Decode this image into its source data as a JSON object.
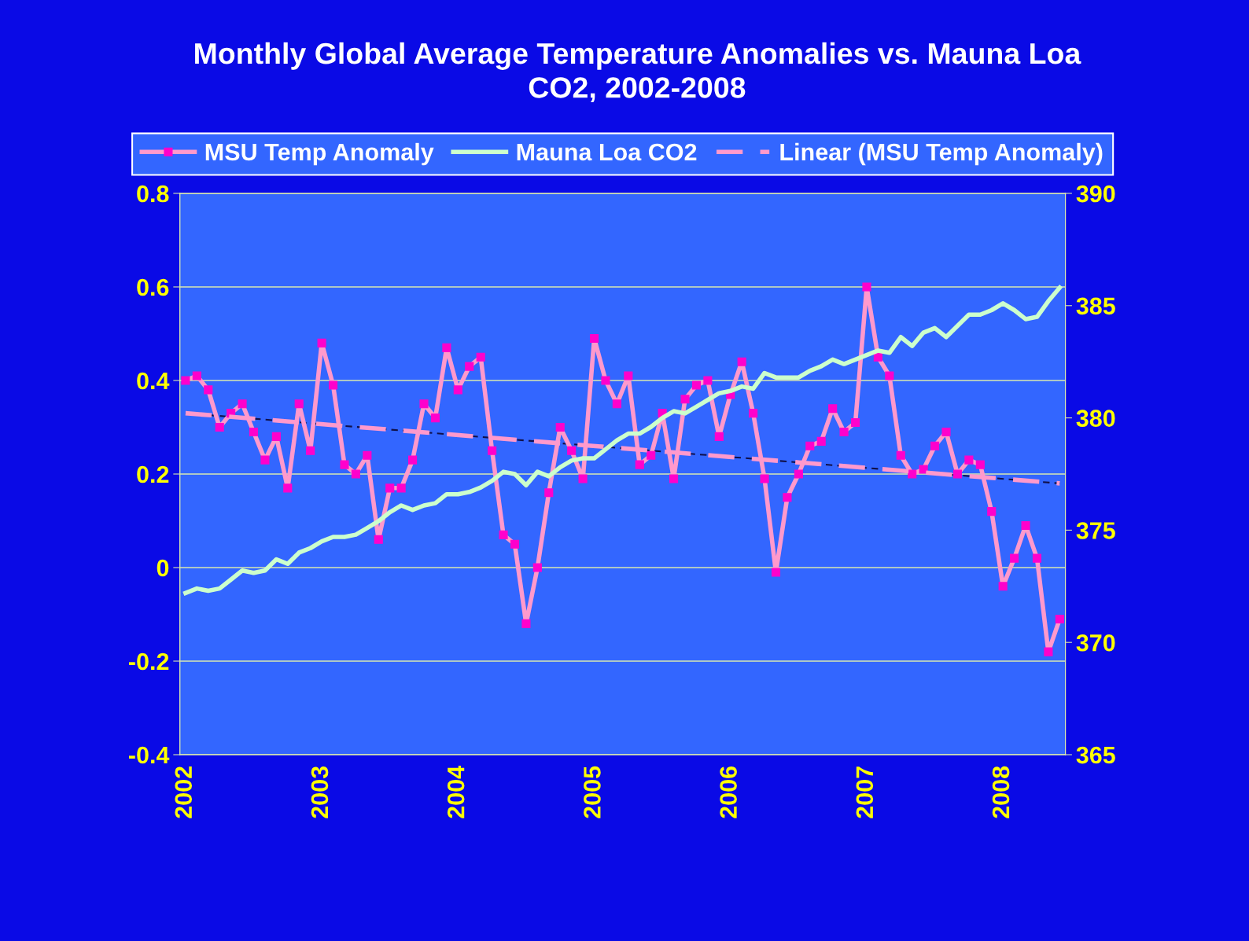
{
  "chart_data": {
    "type": "line",
    "title": "Monthly Global Average Temperature Anomalies vs. Mauna Loa\nCO2, 2002-2008",
    "categories": [
      "2002",
      null,
      null,
      null,
      null,
      null,
      null,
      null,
      null,
      null,
      null,
      null,
      "2003",
      null,
      null,
      null,
      null,
      null,
      null,
      null,
      null,
      null,
      null,
      null,
      "2004",
      null,
      null,
      null,
      null,
      null,
      null,
      null,
      null,
      null,
      null,
      null,
      "2005",
      null,
      null,
      null,
      null,
      null,
      null,
      null,
      null,
      null,
      null,
      null,
      "2006",
      null,
      null,
      null,
      null,
      null,
      null,
      null,
      null,
      null,
      null,
      null,
      "2007",
      null,
      null,
      null,
      null,
      null,
      null,
      null,
      null,
      null,
      null,
      null,
      "2008",
      null,
      null,
      null,
      null,
      null
    ],
    "series": [
      {
        "name": "MSU Temp Anomaly",
        "color": "#ff99cc",
        "marker": "square",
        "line_style": "solid",
        "values": [
          0.4,
          0.41,
          0.38,
          0.3,
          0.33,
          0.35,
          0.29,
          0.23,
          0.28,
          0.17,
          0.35,
          0.25,
          0.48,
          0.39,
          0.22,
          0.2,
          0.24,
          0.06,
          0.17,
          0.17,
          0.23,
          0.35,
          0.32,
          0.47,
          0.38,
          0.43,
          0.45,
          0.25,
          0.07,
          0.05,
          -0.12,
          0.0,
          0.16,
          0.3,
          0.25,
          0.19,
          0.49,
          0.4,
          0.35,
          0.41,
          0.22,
          0.24,
          0.33,
          0.19,
          0.36,
          0.39,
          0.4,
          0.28,
          0.37,
          0.44,
          0.33,
          0.19,
          -0.01,
          0.15,
          0.2,
          0.26,
          0.27,
          0.34,
          0.29,
          0.31,
          0.6,
          0.45,
          0.41,
          0.24,
          0.2,
          0.21,
          0.26,
          0.29,
          0.2,
          0.23,
          0.22,
          0.12,
          -0.04,
          0.02,
          0.09,
          0.02,
          -0.18,
          -0.11
        ]
      },
      {
        "name": "Mauna Loa CO2",
        "color": "#ccffcc",
        "marker": "none",
        "line_style": "solid",
        "axis": "y2",
        "values": [
          372.2,
          372.4,
          372.3,
          372.4,
          372.8,
          373.2,
          373.1,
          373.2,
          373.7,
          373.5,
          374.0,
          374.2,
          374.5,
          374.7,
          374.7,
          374.8,
          375.1,
          375.4,
          375.8,
          376.1,
          375.9,
          376.1,
          376.2,
          376.6,
          376.6,
          376.7,
          376.9,
          377.2,
          377.6,
          377.5,
          377.0,
          377.6,
          377.4,
          377.8,
          378.1,
          378.2,
          378.2,
          378.6,
          379.0,
          379.3,
          379.3,
          379.6,
          380.0,
          380.3,
          380.2,
          380.5,
          380.8,
          381.1,
          381.2,
          381.4,
          381.3,
          382.0,
          381.8,
          381.8,
          381.8,
          382.1,
          382.3,
          382.6,
          382.4,
          382.6,
          382.8,
          383.0,
          382.9,
          383.6,
          383.2,
          383.8,
          384.0,
          383.6,
          384.1,
          384.6,
          384.6,
          384.8,
          385.1,
          384.8,
          384.4,
          384.5,
          385.2,
          385.8
        ]
      },
      {
        "name": "Linear (MSU Temp Anomaly)",
        "color": "#ff99cc",
        "marker": "none",
        "line_style": "dashed",
        "values": [
          0.33,
          null,
          null,
          null,
          null,
          null,
          null,
          null,
          null,
          null,
          null,
          null,
          null,
          null,
          null,
          null,
          null,
          null,
          null,
          null,
          null,
          null,
          null,
          null,
          null,
          null,
          null,
          null,
          null,
          null,
          null,
          null,
          null,
          null,
          null,
          null,
          null,
          null,
          null,
          null,
          null,
          null,
          null,
          null,
          null,
          null,
          null,
          null,
          null,
          null,
          null,
          null,
          null,
          null,
          null,
          null,
          null,
          null,
          null,
          null,
          null,
          null,
          null,
          null,
          null,
          null,
          null,
          null,
          null,
          null,
          null,
          null,
          null,
          null,
          null,
          null,
          null,
          0.18
        ]
      }
    ],
    "ylim": [
      -0.4,
      0.8
    ],
    "yticks": [
      -0.4,
      -0.2,
      0,
      0.2,
      0.4,
      0.6,
      0.8
    ],
    "y2lim": [
      365,
      390
    ],
    "y2ticks": [
      365,
      370,
      375,
      380,
      385,
      390
    ],
    "grid": true,
    "legend": "top"
  }
}
